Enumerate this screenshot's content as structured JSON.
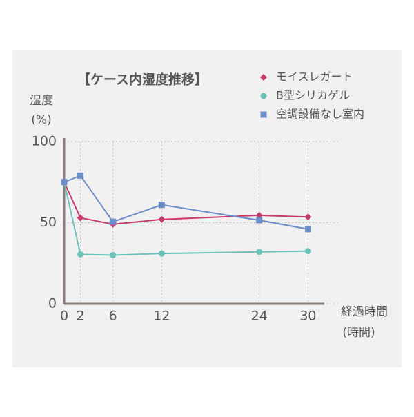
{
  "chart_data": {
    "type": "line",
    "title": "【ケース内湿度推移】",
    "y_label": [
      "湿度",
      "(%)"
    ],
    "x_label": [
      "経過時間",
      "(時間)"
    ],
    "x": [
      0,
      2,
      6,
      12,
      24,
      30
    ],
    "xlim": [
      0,
      32
    ],
    "xticks": [
      0,
      2,
      6,
      12,
      24,
      30
    ],
    "ylim": [
      0,
      100
    ],
    "yticks": [
      0,
      50,
      100
    ],
    "grid": true,
    "series": [
      {
        "name": "モイスレガート",
        "color": "#c93b6c",
        "marker": "diamond",
        "values": [
          75,
          53,
          49,
          52,
          54.5,
          53.5
        ]
      },
      {
        "name": "B型シリカゲル",
        "color": "#6cc1b9",
        "marker": "circle",
        "values": [
          75,
          30.5,
          30,
          31,
          32,
          32.5
        ]
      },
      {
        "name": "空調設備なし室内",
        "color": "#6b8dca",
        "marker": "square",
        "values": [
          75,
          79,
          50.5,
          61,
          51.5,
          46
        ]
      }
    ]
  }
}
